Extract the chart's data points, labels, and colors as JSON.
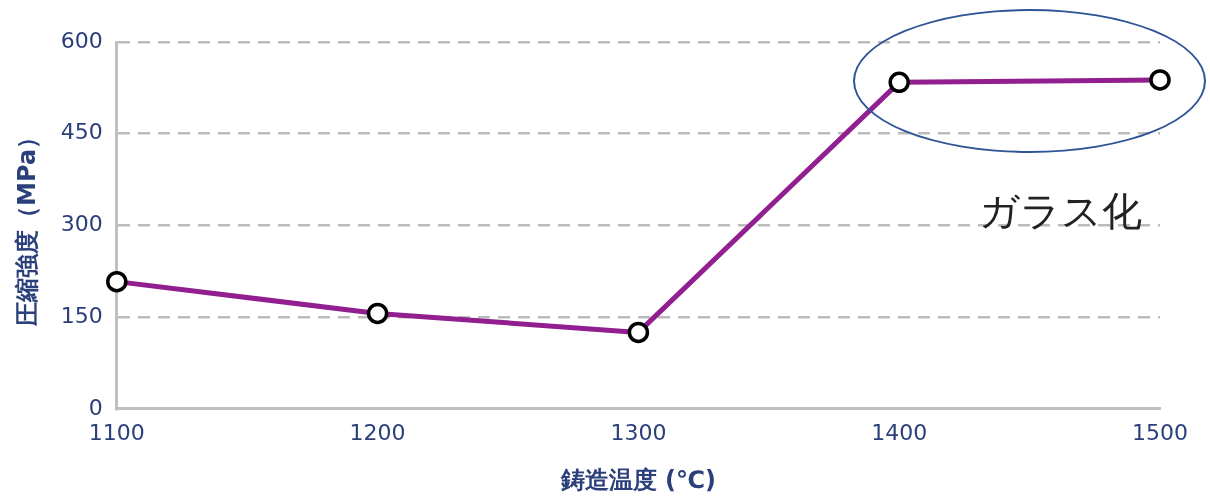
{
  "chart_data": {
    "type": "line",
    "xlabel": "鋳造温度 (℃)",
    "ylabel": "圧縮強度（MPa）",
    "x": [
      1100,
      1200,
      1300,
      1400,
      1500
    ],
    "series": [
      {
        "color": "#921f8f",
        "values": [
          208,
          156,
          125,
          534,
          538
        ]
      }
    ],
    "xlim": [
      1100,
      1500
    ],
    "xticks": [
      1100,
      1200,
      1300,
      1400,
      1500
    ],
    "ylim": [
      0,
      600
    ],
    "yticks": [
      0,
      150,
      300,
      450,
      600
    ],
    "grid": "y",
    "marker": "circle",
    "line_style": "solid",
    "legend": false,
    "annotations": [
      "ガラス化"
    ]
  }
}
